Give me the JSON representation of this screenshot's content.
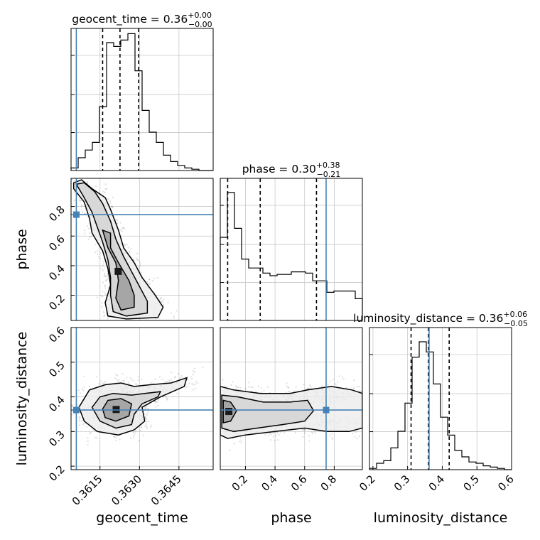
{
  "chart_data": {
    "type": "corner",
    "parameters": [
      "geocent_time",
      "phase",
      "luminosity_distance"
    ],
    "titles": {
      "geocent_time": {
        "name": "geocent_time",
        "median": "0.36",
        "plus": "+0.00",
        "minus": "−0.00"
      },
      "phase": {
        "name": "phase",
        "median": "0.30",
        "plus": "+0.38",
        "minus": "−0.21"
      },
      "luminosity_distance": {
        "name": "luminosity_distance",
        "median": "0.36",
        "plus": "+0.06",
        "minus": "−0.05"
      }
    },
    "axis_labels": {
      "x": [
        "geocent_time",
        "phase",
        "luminosity_distance"
      ],
      "y": [
        "phase",
        "luminosity_distance"
      ]
    },
    "ranges": {
      "geocent_time": [
        0.3604,
        0.3658
      ],
      "phase": [
        0.03,
        0.99
      ],
      "luminosity_distance": [
        0.19,
        0.6
      ]
    },
    "ticks": {
      "geocent_time": {
        "values": [
          0.3615,
          0.363,
          0.3645
        ],
        "labels": [
          "0.3615",
          "0.3630",
          "0.3645"
        ]
      },
      "phase": {
        "values": [
          0.2,
          0.4,
          0.6,
          0.8
        ],
        "labels": [
          "0.2",
          "0.4",
          "0.6",
          "0.8"
        ]
      },
      "luminosity_distance": {
        "values": [
          0.2,
          0.3,
          0.4,
          0.5,
          0.6
        ],
        "labels": [
          "0.2",
          "0.3",
          "0.4",
          "0.5",
          "0.6"
        ]
      }
    },
    "truths": {
      "geocent_time": 0.3606,
      "phase": 0.745,
      "luminosity_distance": 0.362
    },
    "quantiles": {
      "geocent_time": [
        0.3616,
        0.36226,
        0.36297
      ],
      "phase": [
        0.08,
        0.3,
        0.68
      ],
      "luminosity_distance": [
        0.31,
        0.36,
        0.42
      ]
    },
    "histograms": {
      "geocent_time": {
        "edges": [
          0.3604,
          0.36067,
          0.36094,
          0.36121,
          0.36148,
          0.36175,
          0.36202,
          0.36229,
          0.36256,
          0.36283,
          0.3631,
          0.36337,
          0.36364,
          0.36391,
          0.36418,
          0.36445,
          0.36472,
          0.36499,
          0.36526,
          0.36553,
          0.3658
        ],
        "counts": [
          0.02,
          0.1,
          0.16,
          0.22,
          0.5,
          1.0,
          0.97,
          1.02,
          1.07,
          0.78,
          0.47,
          0.3,
          0.22,
          0.12,
          0.07,
          0.04,
          0.02,
          0.01,
          0.0,
          0.0
        ]
      },
      "phase": {
        "edges": [
          0.03,
          0.078,
          0.126,
          0.174,
          0.222,
          0.27,
          0.318,
          0.366,
          0.414,
          0.462,
          0.51,
          0.558,
          0.606,
          0.654,
          0.702,
          0.75,
          0.798,
          0.846,
          0.894,
          0.942,
          0.99
        ],
        "counts": [
          0.65,
          1.0,
          0.72,
          0.48,
          0.41,
          0.41,
          0.37,
          0.35,
          0.36,
          0.36,
          0.38,
          0.38,
          0.37,
          0.31,
          0.31,
          0.22,
          0.23,
          0.23,
          0.23,
          0.17
        ]
      },
      "luminosity_distance": {
        "edges": [
          0.19,
          0.2105,
          0.231,
          0.2515,
          0.272,
          0.2925,
          0.313,
          0.3335,
          0.354,
          0.3745,
          0.395,
          0.4155,
          0.436,
          0.4565,
          0.477,
          0.4975,
          0.518,
          0.5385,
          0.559,
          0.5795,
          0.6
        ],
        "counts": [
          0.01,
          0.05,
          0.07,
          0.17,
          0.3,
          0.52,
          0.88,
          1.0,
          0.92,
          0.67,
          0.41,
          0.27,
          0.15,
          0.1,
          0.06,
          0.05,
          0.03,
          0.02,
          0.01,
          0.0
        ]
      }
    },
    "contours": [
      {
        "x": "geocent_time",
        "y": "phase",
        "levels": [
          [
            [
              0.3605,
              0.96
            ],
            [
              0.3608,
              0.98
            ],
            [
              0.3612,
              0.92
            ],
            [
              0.3617,
              0.86
            ],
            [
              0.3619,
              0.78
            ],
            [
              0.3622,
              0.64
            ],
            [
              0.3624,
              0.52
            ],
            [
              0.3628,
              0.42
            ],
            [
              0.3631,
              0.32
            ],
            [
              0.3636,
              0.2
            ],
            [
              0.3639,
              0.12
            ],
            [
              0.3637,
              0.05
            ],
            [
              0.3625,
              0.04
            ],
            [
              0.3618,
              0.06
            ],
            [
              0.3617,
              0.15
            ],
            [
              0.3619,
              0.27
            ],
            [
              0.3618,
              0.38
            ],
            [
              0.3616,
              0.5
            ],
            [
              0.3612,
              0.62
            ],
            [
              0.3611,
              0.72
            ],
            [
              0.3609,
              0.83
            ],
            [
              0.3605,
              0.92
            ]
          ],
          [
            [
              0.3606,
              0.95
            ],
            [
              0.3609,
              0.96
            ],
            [
              0.3613,
              0.9
            ],
            [
              0.3616,
              0.82
            ],
            [
              0.3619,
              0.7
            ],
            [
              0.3621,
              0.58
            ],
            [
              0.3624,
              0.46
            ],
            [
              0.3627,
              0.36
            ],
            [
              0.363,
              0.26
            ],
            [
              0.3633,
              0.16
            ],
            [
              0.3633,
              0.08
            ],
            [
              0.3625,
              0.06
            ],
            [
              0.362,
              0.09
            ],
            [
              0.3619,
              0.2
            ],
            [
              0.3619,
              0.32
            ],
            [
              0.3618,
              0.44
            ],
            [
              0.3616,
              0.56
            ],
            [
              0.3614,
              0.66
            ],
            [
              0.3612,
              0.76
            ],
            [
              0.3609,
              0.86
            ]
          ],
          [
            [
              0.3616,
              0.64
            ],
            [
              0.3619,
              0.62
            ],
            [
              0.3619,
              0.52
            ],
            [
              0.3622,
              0.42
            ],
            [
              0.3626,
              0.3
            ],
            [
              0.3628,
              0.2
            ],
            [
              0.3628,
              0.12
            ],
            [
              0.3623,
              0.1
            ],
            [
              0.3621,
              0.18
            ],
            [
              0.3622,
              0.3
            ],
            [
              0.3621,
              0.42
            ],
            [
              0.3618,
              0.52
            ]
          ]
        ]
      },
      {
        "x": "geocent_time",
        "y": "luminosity_distance",
        "levels": [
          [
            [
              0.3607,
              0.37
            ],
            [
              0.3611,
              0.42
            ],
            [
              0.3617,
              0.435
            ],
            [
              0.3623,
              0.44
            ],
            [
              0.3628,
              0.43
            ],
            [
              0.3634,
              0.435
            ],
            [
              0.3642,
              0.44
            ],
            [
              0.3648,
              0.455
            ],
            [
              0.3647,
              0.43
            ],
            [
              0.3638,
              0.4
            ],
            [
              0.3631,
              0.37
            ],
            [
              0.3632,
              0.33
            ],
            [
              0.3628,
              0.305
            ],
            [
              0.3622,
              0.29
            ],
            [
              0.3614,
              0.3
            ],
            [
              0.3609,
              0.33
            ]
          ],
          [
            [
              0.3612,
              0.37
            ],
            [
              0.3615,
              0.4
            ],
            [
              0.362,
              0.41
            ],
            [
              0.3627,
              0.405
            ],
            [
              0.3632,
              0.41
            ],
            [
              0.3638,
              0.415
            ],
            [
              0.3637,
              0.4
            ],
            [
              0.3631,
              0.38
            ],
            [
              0.3628,
              0.35
            ],
            [
              0.3627,
              0.32
            ],
            [
              0.3621,
              0.31
            ],
            [
              0.3615,
              0.33
            ]
          ],
          [
            [
              0.3616,
              0.365
            ],
            [
              0.3618,
              0.39
            ],
            [
              0.3623,
              0.395
            ],
            [
              0.3627,
              0.38
            ],
            [
              0.3626,
              0.345
            ],
            [
              0.3621,
              0.33
            ],
            [
              0.3617,
              0.34
            ]
          ]
        ]
      },
      {
        "x": "phase",
        "y": "luminosity_distance",
        "levels": [
          [
            [
              0.03,
              0.43
            ],
            [
              0.12,
              0.42
            ],
            [
              0.3,
              0.41
            ],
            [
              0.5,
              0.41
            ],
            [
              0.62,
              0.42
            ],
            [
              0.78,
              0.43
            ],
            [
              0.92,
              0.42
            ],
            [
              0.99,
              0.41
            ],
            [
              0.99,
              0.31
            ],
            [
              0.9,
              0.3
            ],
            [
              0.75,
              0.3
            ],
            [
              0.6,
              0.31
            ],
            [
              0.4,
              0.3
            ],
            [
              0.2,
              0.29
            ],
            [
              0.08,
              0.28
            ],
            [
              0.03,
              0.29
            ]
          ],
          [
            [
              0.04,
              0.405
            ],
            [
              0.15,
              0.4
            ],
            [
              0.32,
              0.385
            ],
            [
              0.5,
              0.385
            ],
            [
              0.62,
              0.39
            ],
            [
              0.66,
              0.36
            ],
            [
              0.6,
              0.33
            ],
            [
              0.45,
              0.32
            ],
            [
              0.28,
              0.31
            ],
            [
              0.12,
              0.3
            ],
            [
              0.04,
              0.31
            ]
          ],
          [
            [
              0.05,
              0.39
            ],
            [
              0.1,
              0.385
            ],
            [
              0.14,
              0.36
            ],
            [
              0.1,
              0.33
            ],
            [
              0.05,
              0.325
            ]
          ]
        ]
      }
    ]
  }
}
